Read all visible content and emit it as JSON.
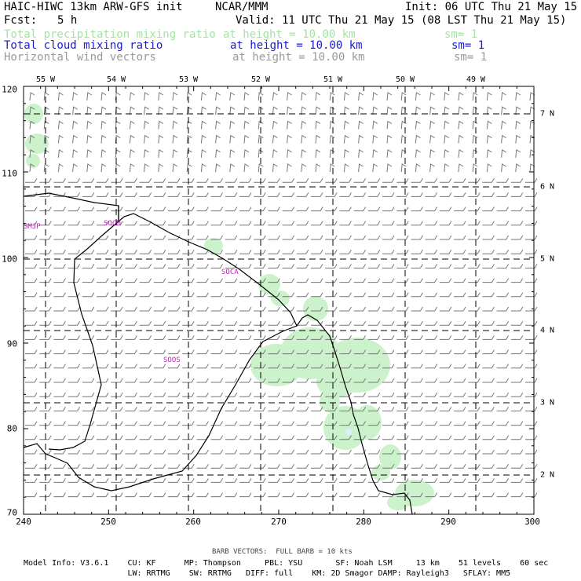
{
  "header": {
    "title_left": "HAIC-HIWC 13km ARW-GFS init",
    "org": "NCAR/MMM",
    "init": "Init: 06 UTC Thu 21 May 15",
    "fcst_label": "Fcst:",
    "fcst_value": "5 h",
    "valid": "Valid: 11 UTC Thu 21 May 15 (08 LST Thu 21 May 15)"
  },
  "fields": [
    {
      "name": "Total precipitation mixing ratio",
      "height": "at height = 10.00 km",
      "sm": "sm= 1",
      "color": "#a3e3a3"
    },
    {
      "name": "Total cloud mixing ratio",
      "height": "at height = 10.00 km",
      "sm": "sm= 1",
      "color": "#1a1ad0"
    },
    {
      "name": "Horizontal wind vectors",
      "height": "at height = 10.00 km",
      "sm": "sm= 1",
      "color": "#9a9a9a"
    }
  ],
  "axes": {
    "x_ticks": [
      "240",
      "250",
      "260",
      "270",
      "280",
      "290",
      "300"
    ],
    "y_ticks": [
      "120",
      "110",
      "100",
      "90",
      "80",
      "70"
    ],
    "lon_labels": [
      "55 W",
      "54 W",
      "53 W",
      "52 W",
      "51 W",
      "50 W",
      "49 W"
    ],
    "lat_labels": [
      "7 N",
      "6 N",
      "5 N",
      "4 N",
      "3 N",
      "2 N"
    ]
  },
  "stations": [
    "SMJP",
    "SOCM",
    "SOCA",
    "SOOS"
  ],
  "footer": {
    "barb": "BARB VECTORS:  FULL BARB = 10 kts",
    "line1": "Model Info: V3.6.1    CU: KF      MP: Thompson     PBL: YSU       SF: Noah LSM     13 km    51 levels    60 sec",
    "line2": "                      LW: RRTMG    SW: RRTMG   DIFF: full    KM: 2D Smagor DAMP: Rayleigh3   SFLAY: MM5"
  },
  "colors": {
    "precip": "#ccf2cc",
    "cloud": "#1a1ad0",
    "coast": "#000000",
    "grid": "#000000",
    "barb": "#777777",
    "station": "#c020c0"
  }
}
